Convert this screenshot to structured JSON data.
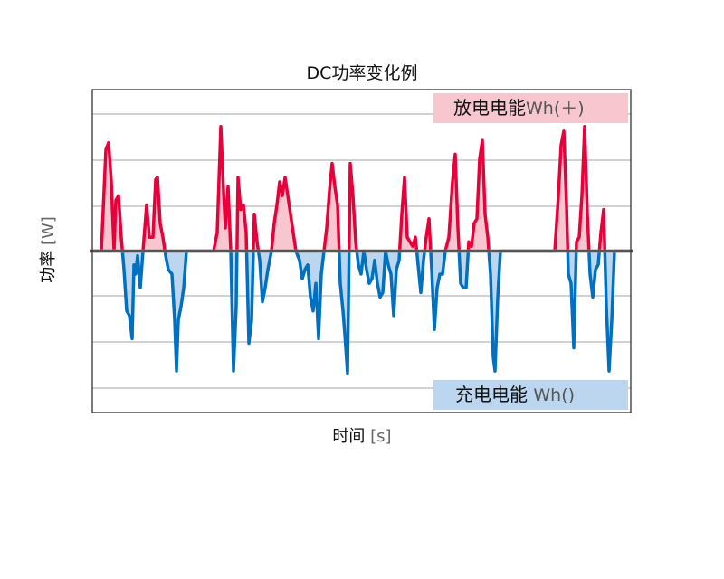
{
  "chart_data": {
    "type": "line",
    "title": "DC功率变化例",
    "xlabel": "时间",
    "xlabel_unit": "[s]",
    "ylabel": "功率",
    "ylabel_unit": "[W]",
    "xlim": [
      0,
      595
    ],
    "ylim": [
      -3.5,
      3.5
    ],
    "grid": true,
    "colors": {
      "positive": "#e8003a",
      "negative": "#0070c0",
      "zero": "#555555",
      "positive_fill": "#f7c6cf",
      "negative_fill": "#bcd6ef"
    },
    "annotations": [
      {
        "label": "放电电能",
        "unit": "Wh(＋)",
        "position": "top-right",
        "color": "#f7c6cf"
      },
      {
        "label": "充电电能",
        "unit": "Wh()",
        "position": "bottom-right",
        "color": "#bcd6ef"
      }
    ],
    "series": [
      {
        "points": [
          [
            0,
            0
          ],
          [
            10,
            0
          ],
          [
            15,
            2.2
          ],
          [
            18,
            2.35
          ],
          [
            21,
            1.5
          ],
          [
            24,
            0
          ],
          [
            26,
            1.1
          ],
          [
            29,
            1.2
          ],
          [
            32,
            0.3
          ],
          [
            35,
            -0.4
          ],
          [
            38,
            -1.3
          ],
          [
            41,
            -1.4
          ],
          [
            44,
            -1.9
          ],
          [
            46,
            -0.3
          ],
          [
            48,
            -0.5
          ],
          [
            50,
            -0.1
          ],
          [
            53,
            -0.8
          ],
          [
            56,
            0
          ],
          [
            60,
            1.0
          ],
          [
            63,
            0.3
          ],
          [
            67,
            0.3
          ],
          [
            70,
            1.55
          ],
          [
            72,
            1.6
          ],
          [
            75,
            0.6
          ],
          [
            78,
            0.3
          ],
          [
            81,
            -0.1
          ],
          [
            84,
            -0.4
          ],
          [
            88,
            -0.5
          ],
          [
            91,
            -1.5
          ],
          [
            93,
            -2.6
          ],
          [
            95,
            -1.5
          ],
          [
            98,
            -1.2
          ],
          [
            101,
            -0.8
          ],
          [
            104,
            0
          ],
          [
            134,
            0
          ],
          [
            138,
            0.4
          ],
          [
            142,
            2.7
          ],
          [
            145,
            1.3
          ],
          [
            147,
            0.5
          ],
          [
            150,
            1.4
          ],
          [
            153,
            0
          ],
          [
            156,
            -2.6
          ],
          [
            159,
            -1.2
          ],
          [
            161,
            1.6
          ],
          [
            164,
            0.9
          ],
          [
            167,
            1.0
          ],
          [
            170,
            0.4
          ],
          [
            173,
            -2.0
          ],
          [
            176,
            -1.5
          ],
          [
            179,
            0.8
          ],
          [
            182,
            0.2
          ],
          [
            185,
            -0.2
          ],
          [
            188,
            -1.1
          ],
          [
            191,
            -0.8
          ],
          [
            194,
            -0.4
          ],
          [
            198,
            0
          ],
          [
            201,
            0.6
          ],
          [
            204,
            1.0
          ],
          [
            207,
            1.5
          ],
          [
            210,
            1.2
          ],
          [
            213,
            1.6
          ],
          [
            216,
            1.2
          ],
          [
            219,
            0.8
          ],
          [
            222,
            0.4
          ],
          [
            225,
            0
          ],
          [
            229,
            -0.2
          ],
          [
            232,
            -0.6
          ],
          [
            235,
            -0.4
          ],
          [
            238,
            -0.3
          ],
          [
            241,
            -1.0
          ],
          [
            244,
            -1.3
          ],
          [
            247,
            -0.7
          ],
          [
            250,
            -1.9
          ],
          [
            253,
            -0.5
          ],
          [
            256,
            0
          ],
          [
            259,
            0.5
          ],
          [
            262,
            1.3
          ],
          [
            265,
            1.9
          ],
          [
            268,
            1.4
          ],
          [
            271,
            1.0
          ],
          [
            274,
            -0.7
          ],
          [
            277,
            -1.3
          ],
          [
            279,
            -1.8
          ],
          [
            282,
            -2.65
          ],
          [
            285,
            1.9
          ],
          [
            288,
            1.2
          ],
          [
            291,
            0.2
          ],
          [
            294,
            -0.3
          ],
          [
            297,
            -0.5
          ],
          [
            300,
            0
          ],
          [
            303,
            -0.4
          ],
          [
            306,
            -0.7
          ],
          [
            309,
            -0.6
          ],
          [
            312,
            -0.2
          ],
          [
            315,
            -0.7
          ],
          [
            318,
            -1.0
          ],
          [
            321,
            -0.9
          ],
          [
            324,
            0
          ],
          [
            327,
            -0.3
          ],
          [
            330,
            -0.5
          ],
          [
            333,
            -1.4
          ],
          [
            336,
            -0.4
          ],
          [
            339,
            -0.2
          ],
          [
            342,
            0.8
          ],
          [
            345,
            1.6
          ],
          [
            348,
            0.3
          ],
          [
            351,
            0.2
          ],
          [
            354,
            0.1
          ],
          [
            357,
            0.3
          ],
          [
            360,
            -0.3
          ],
          [
            363,
            -0.9
          ],
          [
            366,
            -0.2
          ],
          [
            369,
            0.3
          ],
          [
            372,
            0.7
          ],
          [
            375,
            -0.4
          ],
          [
            378,
            -1.7
          ],
          [
            381,
            -0.8
          ],
          [
            384,
            -0.5
          ],
          [
            387,
            -0.5
          ],
          [
            390,
            0
          ],
          [
            394,
            0.3
          ],
          [
            398,
            1.5
          ],
          [
            401,
            2.1
          ],
          [
            404,
            0.5
          ],
          [
            407,
            -0.7
          ],
          [
            410,
            -0.8
          ],
          [
            413,
            -0.8
          ],
          [
            416,
            0.2
          ],
          [
            419,
            0.1
          ],
          [
            422,
            0.6
          ],
          [
            425,
            0.7
          ],
          [
            428,
            2.0
          ],
          [
            431,
            2.4
          ],
          [
            434,
            0.8
          ],
          [
            437,
            0.3
          ],
          [
            440,
            -0.5
          ],
          [
            443,
            -2.3
          ],
          [
            445,
            -2.6
          ],
          [
            448,
            -1.0
          ],
          [
            451,
            0
          ],
          [
            511,
            0
          ],
          [
            515,
            1.2
          ],
          [
            518,
            2.3
          ],
          [
            521,
            2.6
          ],
          [
            524,
            1.0
          ],
          [
            526,
            -0.5
          ],
          [
            529,
            -0.7
          ],
          [
            532,
            -2.1
          ],
          [
            535,
            0.2
          ],
          [
            538,
            0.3
          ],
          [
            541,
            1.2
          ],
          [
            544,
            2.7
          ],
          [
            547,
            0.8
          ],
          [
            550,
            -0.5
          ],
          [
            553,
            -1.0
          ],
          [
            556,
            -0.4
          ],
          [
            559,
            -0.3
          ],
          [
            562,
            0.4
          ],
          [
            565,
            0.9
          ],
          [
            568,
            -1.2
          ],
          [
            571,
            -2.6
          ],
          [
            574,
            -1.5
          ],
          [
            577,
            0
          ],
          [
            595,
            0
          ]
        ]
      }
    ]
  }
}
